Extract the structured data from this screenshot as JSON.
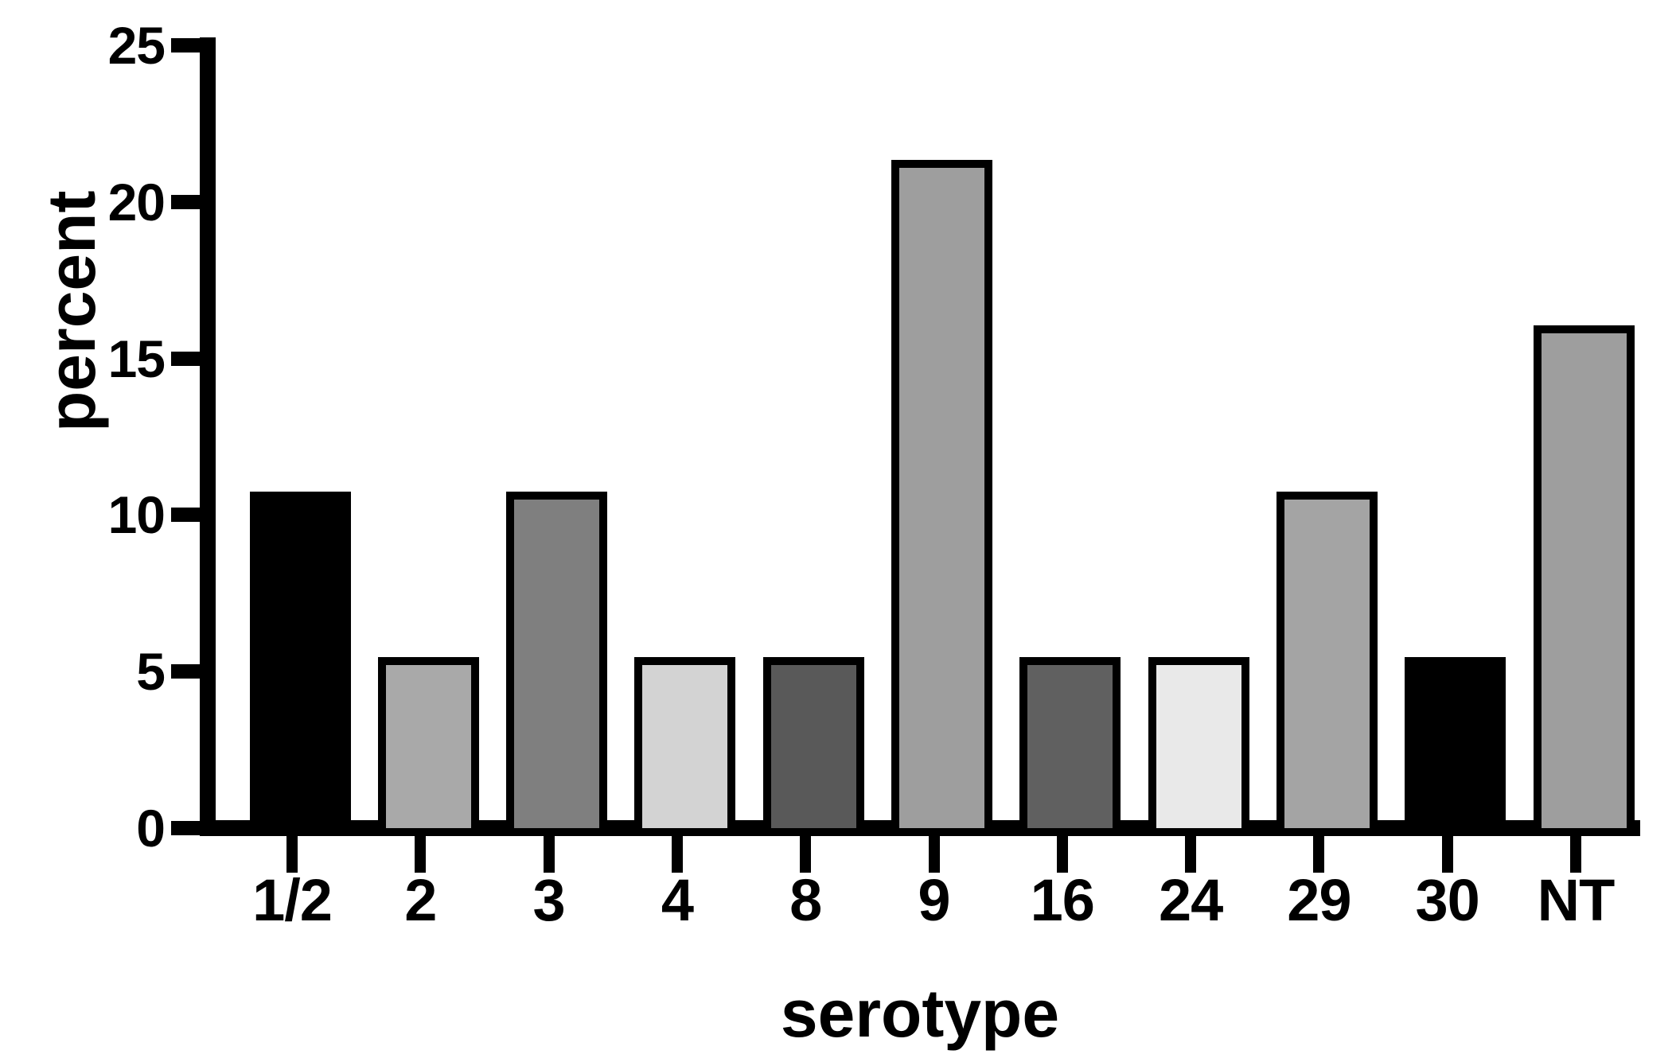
{
  "chart_data": {
    "type": "bar",
    "title": "",
    "xlabel": "serotype",
    "ylabel": "percent",
    "categories": [
      "1/2",
      "2",
      "3",
      "4",
      "8",
      "9",
      "16",
      "24",
      "29",
      "30",
      "NT"
    ],
    "values": [
      10.5,
      5.2,
      10.5,
      5.2,
      5.2,
      21.1,
      5.2,
      5.2,
      10.5,
      5.2,
      15.8
    ],
    "bar_colors": [
      "#000000",
      "#a9a9a9",
      "#7f7f7f",
      "#d3d3d3",
      "#595959",
      "#9e9e9e",
      "#606060",
      "#e9e9e9",
      "#a4a4a4",
      "#000000",
      "#9e9e9e"
    ],
    "bar_outline_color": "#000000",
    "axis_color": "#000000",
    "text_color": "#000000",
    "background_color": "#ffffff",
    "ylim": [
      0,
      25
    ],
    "yticks": [
      0,
      5,
      10,
      15,
      20,
      25
    ],
    "grid": false,
    "legend": null
  }
}
